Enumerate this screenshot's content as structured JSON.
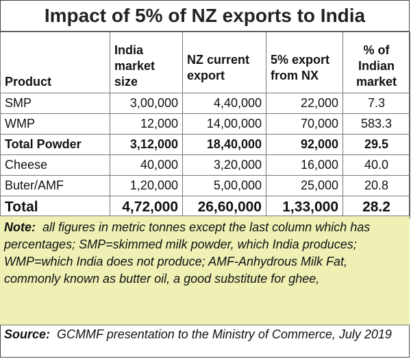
{
  "title": "Impact of 5% of NZ exports to India",
  "table": {
    "headers": {
      "product": "Product",
      "india_market_size": "India market size",
      "nz_current_export": "NZ current export",
      "export_5pct": "5% export from NX",
      "pct_indian_market": "% of Indian market"
    },
    "rows": [
      {
        "product": "SMP",
        "india": "3,00,000",
        "nz": "4,40,000",
        "exp5": "22,000",
        "pct": "7.3"
      },
      {
        "product": "WMP",
        "india": "12,000",
        "nz": "14,00,000",
        "exp5": "70,000",
        "pct": "583.3"
      },
      {
        "product": "Total Powder",
        "india": "3,12,000",
        "nz": "18,40,000",
        "exp5": "92,000",
        "pct": "29.5"
      },
      {
        "product": "Cheese",
        "india": "40,000",
        "nz": "3,20,000",
        "exp5": "16,000",
        "pct": "40.0"
      },
      {
        "product": "Buter/AMF",
        "india": "1,20,000",
        "nz": "5,00,000",
        "exp5": "25,000",
        "pct": "20.8"
      },
      {
        "product": "Total",
        "india": "4,72,000",
        "nz": "26,60,000",
        "exp5": "1,33,000",
        "pct": "28.2"
      }
    ]
  },
  "note": {
    "label": "Note:",
    "text": "all figures in metric tonnes except the last column which has percentages; SMP=skimmed milk powder, which India produces; WMP=which India does not produce; AMF-Anhydrous Milk Fat, commonly known as butter oil, a good substitute for ghee,",
    "background": "#eef0b4"
  },
  "source": {
    "label": "Source:",
    "text": "GCMMF presentation to the Ministry of Commerce, July 2019"
  }
}
